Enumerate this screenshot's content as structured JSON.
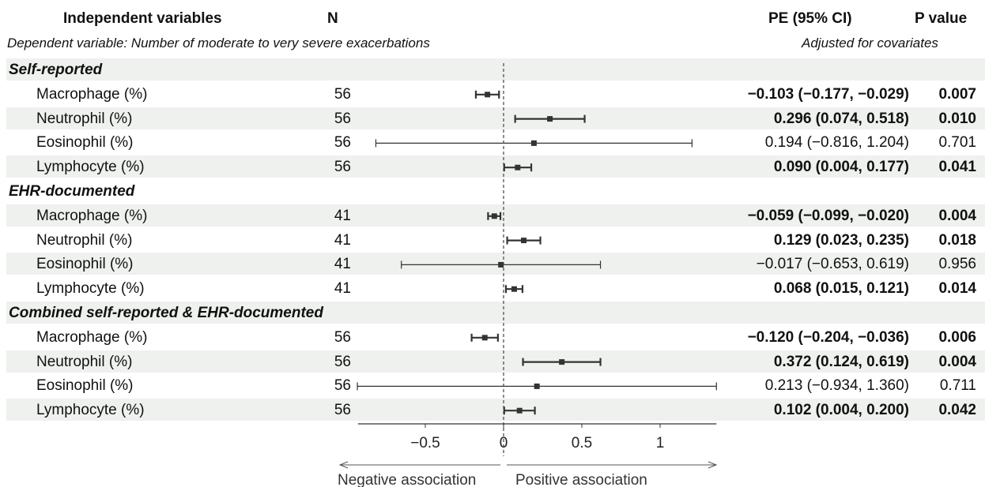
{
  "headers": {
    "independent": "Independent variables",
    "n": "N",
    "pe": "PE (95% CI)",
    "pvalue": "P value",
    "dependent": "Dependent variable: Number of moderate to very severe exacerbations",
    "adjusted": "Adjusted for covariates"
  },
  "chart_data": {
    "type": "forest",
    "x_ticks": [
      "−0.5",
      "0",
      "0.5",
      "1"
    ],
    "xlim": [
      -0.93,
      1.36
    ],
    "reference_line": 0,
    "direction_labels": {
      "negative": "Negative association",
      "positive": "Positive association"
    },
    "groups": [
      {
        "name": "Self-reported",
        "rows": [
          {
            "label": "Macrophage (%)",
            "n": "56",
            "pe": -0.103,
            "lo": -0.177,
            "hi": -0.029,
            "pe_text": "−0.103 (−0.177, −0.029)",
            "p": "0.007",
            "significant": true
          },
          {
            "label": "Neutrophil (%)",
            "n": "56",
            "pe": 0.296,
            "lo": 0.074,
            "hi": 0.518,
            "pe_text": "0.296 (0.074, 0.518)",
            "p": "0.010",
            "significant": true
          },
          {
            "label": "Eosinophil (%)",
            "n": "56",
            "pe": 0.194,
            "lo": -0.816,
            "hi": 1.204,
            "pe_text": "0.194 (−0.816, 1.204)",
            "p": "0.701",
            "significant": false
          },
          {
            "label": "Lymphocyte (%)",
            "n": "56",
            "pe": 0.09,
            "lo": 0.004,
            "hi": 0.177,
            "pe_text": "0.090 (0.004, 0.177)",
            "p": "0.041",
            "significant": true
          }
        ]
      },
      {
        "name": "EHR-documented",
        "rows": [
          {
            "label": "Macrophage (%)",
            "n": "41",
            "pe": -0.059,
            "lo": -0.099,
            "hi": -0.02,
            "pe_text": "−0.059 (−0.099, −0.020)",
            "p": "0.004",
            "significant": true
          },
          {
            "label": "Neutrophil (%)",
            "n": "41",
            "pe": 0.129,
            "lo": 0.023,
            "hi": 0.235,
            "pe_text": "0.129 (0.023, 0.235)",
            "p": "0.018",
            "significant": true
          },
          {
            "label": "Eosinophil (%)",
            "n": "41",
            "pe": -0.017,
            "lo": -0.653,
            "hi": 0.619,
            "pe_text": "−0.017 (−0.653, 0.619)",
            "p": "0.956",
            "significant": false
          },
          {
            "label": "Lymphocyte (%)",
            "n": "41",
            "pe": 0.068,
            "lo": 0.015,
            "hi": 0.121,
            "pe_text": "0.068 (0.015, 0.121)",
            "p": "0.014",
            "significant": true
          }
        ]
      },
      {
        "name": "Combined self-reported & EHR-documented",
        "rows": [
          {
            "label": "Macrophage (%)",
            "n": "56",
            "pe": -0.12,
            "lo": -0.204,
            "hi": -0.036,
            "pe_text": "−0.120 (−0.204, −0.036)",
            "p": "0.006",
            "significant": true
          },
          {
            "label": "Neutrophil (%)",
            "n": "56",
            "pe": 0.372,
            "lo": 0.124,
            "hi": 0.619,
            "pe_text": "0.372 (0.124, 0.619)",
            "p": "0.004",
            "significant": true
          },
          {
            "label": "Eosinophil (%)",
            "n": "56",
            "pe": 0.213,
            "lo": -0.934,
            "hi": 1.36,
            "pe_text": "0.213 (−0.934, 1.360)",
            "p": "0.711",
            "significant": false
          },
          {
            "label": "Lymphocyte (%)",
            "n": "56",
            "pe": 0.102,
            "lo": 0.004,
            "hi": 0.2,
            "pe_text": "0.102 (0.004, 0.200)",
            "p": "0.042",
            "significant": true
          }
        ]
      }
    ]
  }
}
